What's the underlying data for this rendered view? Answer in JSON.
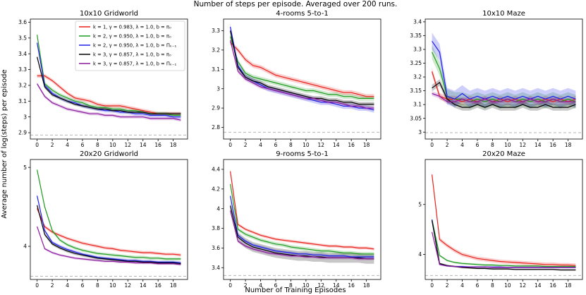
{
  "figure": {
    "suptitle": "Number of steps per episode. Averaged over 200 runs.",
    "xlabel": "Number of Training Episodes",
    "ylabel": "Average number of log(steps) per episode"
  },
  "legend": [
    {
      "label": "k = 1, γ = 0.983, λ = 1.0, b = π₀",
      "color": "#e8211c"
    },
    {
      "label": "k = 2, γ = 0.950, λ = 1.0, b = π₀",
      "color": "#1f9a1f"
    },
    {
      "label": "k = 2, γ = 0.950, λ = 1.0, b = Πₖ₋₁",
      "color": "#1f1fe8"
    },
    {
      "label": "k = 3, γ = 0.857, λ = 1.0, b = π₀",
      "color": "#000000"
    },
    {
      "label": "k = 3, γ = 0.857, λ = 1.0, b = Πₖ₋₁",
      "color": "#8b1a9e"
    }
  ],
  "chart_data": [
    {
      "type": "line",
      "title": "10x10 Gridworld",
      "ylim": [
        2.86,
        3.62
      ],
      "yticks": [
        2.9,
        3.0,
        3.1,
        3.2,
        3.3,
        3.4,
        3.5,
        3.6
      ],
      "xlim": [
        -0.9,
        19.9
      ],
      "xticks": [
        0,
        2,
        4,
        6,
        8,
        10,
        12,
        14,
        16,
        18
      ],
      "reference": 2.885,
      "series": [
        {
          "values": [
            3.26,
            3.26,
            3.23,
            3.19,
            3.15,
            3.12,
            3.11,
            3.1,
            3.08,
            3.07,
            3.07,
            3.07,
            3.06,
            3.05,
            3.04,
            3.03,
            3.02,
            3.02,
            3.02,
            3.02
          ],
          "band": 0.012
        },
        {
          "values": [
            3.52,
            3.21,
            3.17,
            3.14,
            3.12,
            3.1,
            3.09,
            3.07,
            3.06,
            3.06,
            3.05,
            3.05,
            3.04,
            3.04,
            3.03,
            3.02,
            3.02,
            3.02,
            3.01,
            3.01
          ],
          "band": 0.012
        },
        {
          "values": [
            3.47,
            3.2,
            3.15,
            3.12,
            3.1,
            3.09,
            3.07,
            3.06,
            3.05,
            3.04,
            3.04,
            3.03,
            3.03,
            3.02,
            3.02,
            3.01,
            3.01,
            3.01,
            3.0,
            3.0
          ],
          "band": 0.012
        },
        {
          "values": [
            3.38,
            3.19,
            3.14,
            3.12,
            3.1,
            3.08,
            3.07,
            3.06,
            3.05,
            3.05,
            3.04,
            3.04,
            3.03,
            3.03,
            3.03,
            3.02,
            3.02,
            3.02,
            3.02,
            3.02
          ],
          "band": 0.01
        },
        {
          "values": [
            3.21,
            3.13,
            3.09,
            3.07,
            3.05,
            3.04,
            3.03,
            3.02,
            3.02,
            3.01,
            3.01,
            3.0,
            3.0,
            3.0,
            3.0,
            2.99,
            2.99,
            2.99,
            2.99,
            2.98
          ],
          "band": 0.01
        }
      ]
    },
    {
      "type": "line",
      "title": "4-rooms 5-to-1",
      "ylim": [
        2.74,
        3.36
      ],
      "yticks": [
        2.8,
        2.9,
        3.0,
        3.1,
        3.2,
        3.3
      ],
      "xlim": [
        -0.9,
        19.9
      ],
      "xticks": [
        0,
        2,
        4,
        6,
        8,
        10,
        12,
        14,
        16,
        18
      ],
      "reference": 2.775,
      "series": [
        {
          "values": [
            3.24,
            3.2,
            3.15,
            3.12,
            3.11,
            3.09,
            3.07,
            3.06,
            3.05,
            3.04,
            3.03,
            3.02,
            3.01,
            3.0,
            2.99,
            2.98,
            2.98,
            2.97,
            2.96,
            2.96
          ],
          "band": 0.012
        },
        {
          "values": [
            3.27,
            3.14,
            3.08,
            3.06,
            3.05,
            3.04,
            3.03,
            3.02,
            3.01,
            3.0,
            2.99,
            2.99,
            2.98,
            2.97,
            2.97,
            2.96,
            2.96,
            2.95,
            2.95,
            2.95
          ],
          "band": 0.012
        },
        {
          "values": [
            3.32,
            3.12,
            3.06,
            3.04,
            3.02,
            3.0,
            2.99,
            2.98,
            2.97,
            2.96,
            2.95,
            2.94,
            2.93,
            2.93,
            2.92,
            2.91,
            2.91,
            2.9,
            2.9,
            2.89
          ],
          "band": 0.014
        },
        {
          "values": [
            3.3,
            3.11,
            3.06,
            3.04,
            3.03,
            3.01,
            3.0,
            2.99,
            2.98,
            2.97,
            2.96,
            2.95,
            2.95,
            2.94,
            2.94,
            2.93,
            2.93,
            2.92,
            2.92,
            2.92
          ],
          "band": 0.012
        },
        {
          "values": [
            3.25,
            3.09,
            3.05,
            3.03,
            3.01,
            3.0,
            2.99,
            2.98,
            2.97,
            2.96,
            2.95,
            2.95,
            2.94,
            2.93,
            2.93,
            2.92,
            2.91,
            2.91,
            2.9,
            2.9
          ],
          "band": 0.01
        }
      ]
    },
    {
      "type": "line",
      "title": "10x10 Maze",
      "ylim": [
        2.975,
        3.41
      ],
      "yticks": [
        3.0,
        3.05,
        3.1,
        3.15,
        3.2,
        3.25,
        3.3,
        3.35,
        3.4
      ],
      "xlim": [
        -0.9,
        19.9
      ],
      "xticks": [
        0,
        2,
        4,
        6,
        8,
        10,
        12,
        14,
        16,
        18
      ],
      "reference": 2.998,
      "series": [
        {
          "values": [
            3.22,
            3.13,
            3.12,
            3.12,
            3.11,
            3.12,
            3.11,
            3.12,
            3.11,
            3.12,
            3.11,
            3.12,
            3.11,
            3.12,
            3.11,
            3.12,
            3.11,
            3.12,
            3.11,
            3.12
          ],
          "band": 0.012
        },
        {
          "values": [
            3.29,
            3.23,
            3.13,
            3.12,
            3.12,
            3.11,
            3.12,
            3.11,
            3.12,
            3.11,
            3.12,
            3.11,
            3.12,
            3.11,
            3.12,
            3.11,
            3.12,
            3.11,
            3.12,
            3.11
          ],
          "band": 0.025
        },
        {
          "values": [
            3.33,
            3.29,
            3.13,
            3.12,
            3.14,
            3.12,
            3.13,
            3.12,
            3.13,
            3.12,
            3.13,
            3.12,
            3.13,
            3.12,
            3.13,
            3.12,
            3.13,
            3.12,
            3.13,
            3.12
          ],
          "band": 0.03
        },
        {
          "values": [
            3.16,
            3.18,
            3.12,
            3.1,
            3.09,
            3.09,
            3.1,
            3.09,
            3.1,
            3.09,
            3.09,
            3.09,
            3.1,
            3.09,
            3.09,
            3.1,
            3.09,
            3.09,
            3.09,
            3.1
          ],
          "band": 0.012
        },
        {
          "values": [
            3.14,
            3.13,
            3.11,
            3.11,
            3.12,
            3.11,
            3.11,
            3.12,
            3.11,
            3.11,
            3.12,
            3.11,
            3.11,
            3.12,
            3.11,
            3.11,
            3.12,
            3.11,
            3.11,
            3.11
          ],
          "band": 0.008
        }
      ]
    },
    {
      "type": "line",
      "title": "20x20 Gridworld",
      "ylim": [
        3.58,
        5.1
      ],
      "yticks": [
        4,
        5
      ],
      "xlim": [
        -0.9,
        19.9
      ],
      "xticks": [
        0,
        2,
        4,
        6,
        8,
        10,
        12,
        14,
        16,
        18
      ],
      "reference": 3.62,
      "series": [
        {
          "values": [
            4.48,
            4.25,
            4.18,
            4.14,
            4.1,
            4.07,
            4.04,
            4.02,
            4.0,
            3.98,
            3.97,
            3.95,
            3.94,
            3.93,
            3.92,
            3.92,
            3.91,
            3.9,
            3.9,
            3.89
          ],
          "band": 0.02
        },
        {
          "values": [
            4.97,
            4.5,
            4.2,
            4.08,
            4.02,
            3.98,
            3.95,
            3.93,
            3.91,
            3.9,
            3.89,
            3.88,
            3.87,
            3.86,
            3.86,
            3.85,
            3.85,
            3.84,
            3.84,
            3.84
          ],
          "band": 0.02
        },
        {
          "values": [
            4.64,
            4.2,
            4.05,
            4.0,
            3.96,
            3.93,
            3.9,
            3.88,
            3.86,
            3.85,
            3.84,
            3.83,
            3.82,
            3.82,
            3.81,
            3.81,
            3.8,
            3.8,
            3.8,
            3.79
          ],
          "band": 0.02
        },
        {
          "values": [
            4.52,
            4.15,
            4.03,
            3.98,
            3.94,
            3.91,
            3.89,
            3.87,
            3.85,
            3.84,
            3.83,
            3.82,
            3.81,
            3.81,
            3.8,
            3.8,
            3.79,
            3.79,
            3.79,
            3.78
          ],
          "band": 0.02
        },
        {
          "values": [
            4.25,
            3.97,
            3.92,
            3.89,
            3.87,
            3.85,
            3.84,
            3.83,
            3.82,
            3.81,
            3.81,
            3.8,
            3.8,
            3.79,
            3.79,
            3.79,
            3.78,
            3.78,
            3.78,
            3.77
          ],
          "band": 0.015
        }
      ]
    },
    {
      "type": "line",
      "title": "9-rooms 5-to-1",
      "ylim": [
        3.28,
        4.5
      ],
      "yticks": [
        3.4,
        3.6,
        3.8,
        4.0,
        4.2,
        4.4
      ],
      "xlim": [
        -0.9,
        19.9
      ],
      "xticks": [
        0,
        2,
        4,
        6,
        8,
        10,
        12,
        14,
        16,
        18
      ],
      "reference": 3.32,
      "series": [
        {
          "values": [
            4.38,
            3.84,
            3.79,
            3.76,
            3.73,
            3.71,
            3.69,
            3.68,
            3.67,
            3.66,
            3.65,
            3.64,
            3.63,
            3.62,
            3.62,
            3.61,
            3.61,
            3.6,
            3.6,
            3.59
          ],
          "band": 0.015
        },
        {
          "values": [
            4.25,
            3.79,
            3.74,
            3.71,
            3.68,
            3.66,
            3.64,
            3.63,
            3.61,
            3.6,
            3.59,
            3.58,
            3.57,
            3.57,
            3.56,
            3.55,
            3.55,
            3.54,
            3.54,
            3.54
          ],
          "band": 0.02
        },
        {
          "values": [
            4.13,
            3.73,
            3.67,
            3.63,
            3.61,
            3.59,
            3.57,
            3.56,
            3.55,
            3.54,
            3.54,
            3.53,
            3.53,
            3.52,
            3.52,
            3.52,
            3.51,
            3.51,
            3.51,
            3.51
          ],
          "band": 0.015
        },
        {
          "values": [
            4.03,
            3.71,
            3.65,
            3.61,
            3.59,
            3.57,
            3.55,
            3.54,
            3.53,
            3.52,
            3.52,
            3.51,
            3.51,
            3.5,
            3.5,
            3.5,
            3.5,
            3.5,
            3.49,
            3.49
          ],
          "band": 0.05
        },
        {
          "values": [
            3.98,
            3.67,
            3.62,
            3.59,
            3.57,
            3.55,
            3.54,
            3.53,
            3.52,
            3.52,
            3.51,
            3.51,
            3.5,
            3.5,
            3.5,
            3.5,
            3.5,
            3.49,
            3.49,
            3.49
          ],
          "band": 0.015
        }
      ]
    },
    {
      "type": "line",
      "title": "20x20 Maze",
      "ylim": [
        3.5,
        5.9
      ],
      "yticks": [
        4,
        5
      ],
      "xlim": [
        -0.9,
        19.9
      ],
      "xticks": [
        0,
        2,
        4,
        6,
        8,
        10,
        12,
        14,
        16,
        18
      ],
      "reference": 3.58,
      "series": [
        {
          "values": [
            5.6,
            4.3,
            4.18,
            4.08,
            4.0,
            3.96,
            3.92,
            3.9,
            3.88,
            3.86,
            3.85,
            3.84,
            3.83,
            3.82,
            3.81,
            3.8,
            3.8,
            3.79,
            3.79,
            3.78
          ],
          "band": 0.04
        },
        {
          "values": [
            4.7,
            3.98,
            3.88,
            3.84,
            3.82,
            3.81,
            3.8,
            3.79,
            3.79,
            3.78,
            3.78,
            3.77,
            3.77,
            3.77,
            3.77,
            3.76,
            3.76,
            3.76,
            3.76,
            3.76
          ],
          "band": 0.02
        },
        {
          "values": [
            4.7,
            3.8,
            3.77,
            3.76,
            3.76,
            3.75,
            3.75,
            3.75,
            3.75,
            3.75,
            3.74,
            3.74,
            3.74,
            3.74,
            3.74,
            3.74,
            3.74,
            3.74,
            3.74,
            3.74
          ],
          "band": 0.015
        },
        {
          "values": [
            4.68,
            3.82,
            3.78,
            3.76,
            3.74,
            3.73,
            3.72,
            3.72,
            3.71,
            3.71,
            3.71,
            3.7,
            3.7,
            3.7,
            3.7,
            3.7,
            3.7,
            3.69,
            3.69,
            3.69
          ],
          "band": 0.015
        },
        {
          "values": [
            4.45,
            3.8,
            3.77,
            3.76,
            3.75,
            3.75,
            3.75,
            3.75,
            3.74,
            3.74,
            3.74,
            3.74,
            3.74,
            3.74,
            3.74,
            3.74,
            3.74,
            3.74,
            3.74,
            3.74
          ],
          "band": 0.015
        }
      ]
    }
  ]
}
